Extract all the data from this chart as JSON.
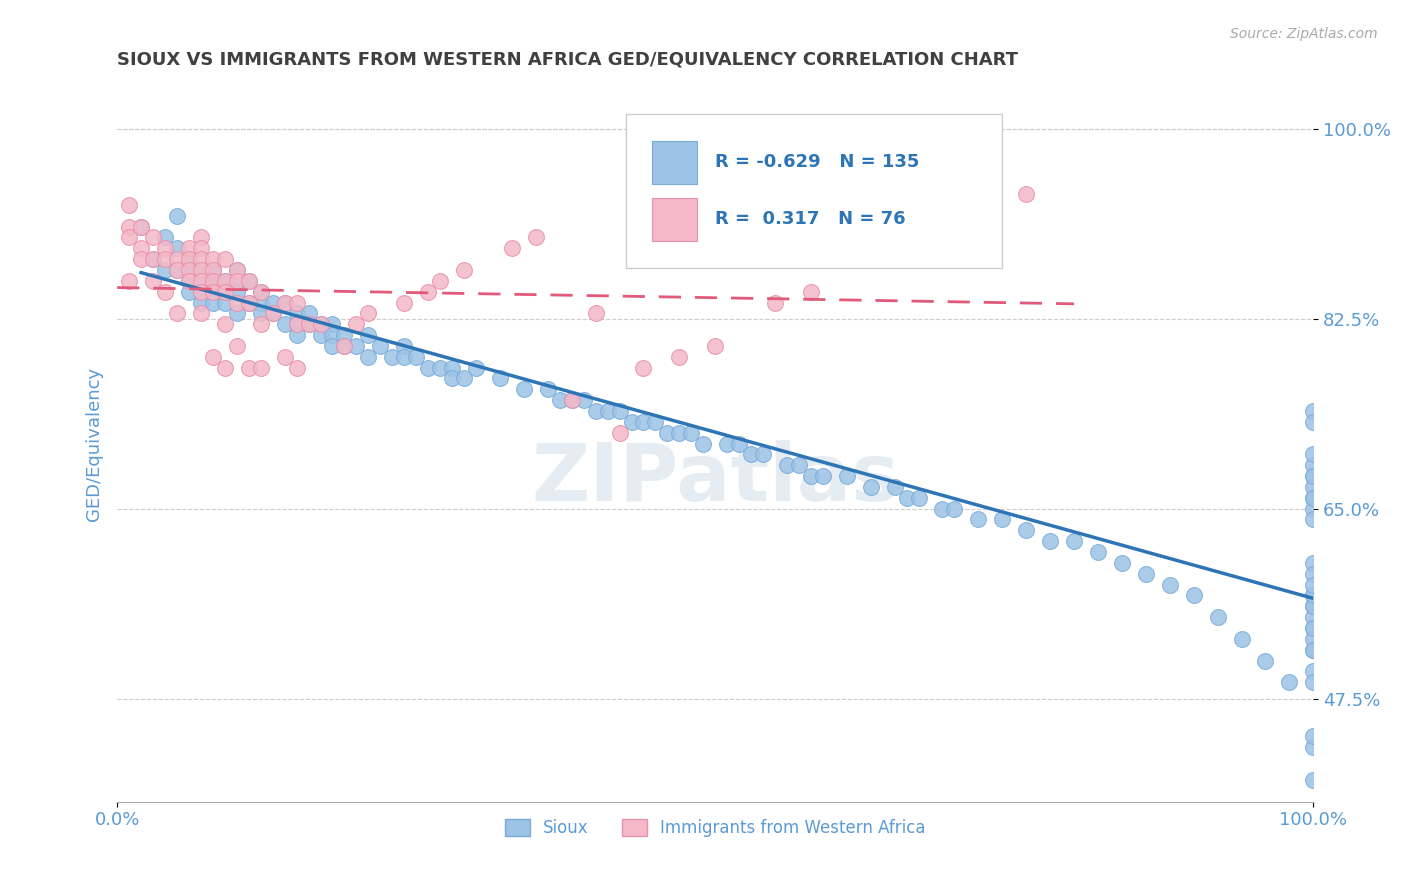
{
  "title": "SIOUX VS IMMIGRANTS FROM WESTERN AFRICA GED/EQUIVALENCY CORRELATION CHART",
  "source_text": "Source: ZipAtlas.com",
  "ylabel": "GED/Equivalency",
  "xlim": [
    0.0,
    1.0
  ],
  "ylim": [
    0.38,
    1.04
  ],
  "yticks": [
    0.475,
    0.65,
    0.825,
    1.0
  ],
  "ytick_labels": [
    "47.5%",
    "65.0%",
    "82.5%",
    "100.0%"
  ],
  "xticks": [
    0.0,
    1.0
  ],
  "xtick_labels": [
    "0.0%",
    "100.0%"
  ],
  "R_sioux": -0.629,
  "N_sioux": 135,
  "R_west_africa": 0.317,
  "N_west_africa": 76,
  "watermark": "ZIPatlas",
  "background_color": "#ffffff",
  "plot_bg_color": "#ffffff",
  "grid_color": "#cccccc",
  "title_color": "#404040",
  "axis_label_color": "#5b9bd5",
  "tick_label_color": "#5b9bd5",
  "sioux_color": "#9dc3e6",
  "sioux_edge_color": "#7aacda",
  "west_africa_color": "#f4b8c8",
  "west_africa_edge_color": "#e891aa",
  "sioux_trend_color": "#2e75b6",
  "west_africa_trend_color": "#e05a7a",
  "sioux_x": [
    0.02,
    0.03,
    0.04,
    0.04,
    0.05,
    0.05,
    0.05,
    0.06,
    0.06,
    0.06,
    0.06,
    0.07,
    0.07,
    0.07,
    0.07,
    0.08,
    0.08,
    0.08,
    0.08,
    0.09,
    0.09,
    0.09,
    0.1,
    0.1,
    0.1,
    0.1,
    0.11,
    0.11,
    0.12,
    0.12,
    0.12,
    0.13,
    0.13,
    0.14,
    0.14,
    0.15,
    0.15,
    0.15,
    0.16,
    0.16,
    0.17,
    0.17,
    0.18,
    0.18,
    0.18,
    0.19,
    0.19,
    0.2,
    0.21,
    0.21,
    0.22,
    0.23,
    0.24,
    0.24,
    0.25,
    0.26,
    0.27,
    0.28,
    0.28,
    0.29,
    0.3,
    0.32,
    0.34,
    0.36,
    0.37,
    0.38,
    0.39,
    0.4,
    0.41,
    0.42,
    0.43,
    0.44,
    0.45,
    0.46,
    0.47,
    0.48,
    0.49,
    0.51,
    0.52,
    0.53,
    0.54,
    0.56,
    0.57,
    0.58,
    0.59,
    0.61,
    0.63,
    0.65,
    0.66,
    0.67,
    0.69,
    0.7,
    0.72,
    0.74,
    0.76,
    0.78,
    0.8,
    0.82,
    0.84,
    0.86,
    0.88,
    0.9,
    0.92,
    0.94,
    0.96,
    0.98,
    1.0,
    1.0,
    1.0,
    1.0,
    1.0,
    1.0,
    1.0,
    1.0,
    1.0,
    1.0,
    1.0,
    1.0,
    1.0,
    1.0,
    1.0,
    1.0,
    1.0,
    1.0,
    1.0,
    1.0,
    1.0,
    1.0,
    1.0,
    1.0,
    1.0,
    1.0,
    1.0,
    1.0,
    1.0
  ],
  "sioux_y": [
    0.91,
    0.88,
    0.9,
    0.87,
    0.92,
    0.89,
    0.87,
    0.88,
    0.87,
    0.86,
    0.85,
    0.87,
    0.86,
    0.85,
    0.84,
    0.87,
    0.86,
    0.85,
    0.84,
    0.86,
    0.85,
    0.84,
    0.87,
    0.86,
    0.85,
    0.83,
    0.86,
    0.84,
    0.85,
    0.84,
    0.83,
    0.84,
    0.83,
    0.84,
    0.82,
    0.83,
    0.82,
    0.81,
    0.83,
    0.82,
    0.82,
    0.81,
    0.82,
    0.81,
    0.8,
    0.81,
    0.8,
    0.8,
    0.81,
    0.79,
    0.8,
    0.79,
    0.8,
    0.79,
    0.79,
    0.78,
    0.78,
    0.78,
    0.77,
    0.77,
    0.78,
    0.77,
    0.76,
    0.76,
    0.75,
    0.75,
    0.75,
    0.74,
    0.74,
    0.74,
    0.73,
    0.73,
    0.73,
    0.72,
    0.72,
    0.72,
    0.71,
    0.71,
    0.71,
    0.7,
    0.7,
    0.69,
    0.69,
    0.68,
    0.68,
    0.68,
    0.67,
    0.67,
    0.66,
    0.66,
    0.65,
    0.65,
    0.64,
    0.64,
    0.63,
    0.62,
    0.62,
    0.61,
    0.6,
    0.59,
    0.58,
    0.57,
    0.55,
    0.53,
    0.51,
    0.49,
    0.69,
    0.68,
    0.67,
    0.66,
    0.65,
    0.64,
    0.74,
    0.73,
    0.57,
    0.56,
    0.6,
    0.59,
    0.55,
    0.54,
    0.53,
    0.52,
    0.5,
    0.49,
    0.56,
    0.57,
    0.43,
    0.44,
    0.4,
    0.58,
    0.66,
    0.68,
    0.7,
    0.54,
    0.52
  ],
  "wa_x": [
    0.01,
    0.01,
    0.01,
    0.01,
    0.02,
    0.02,
    0.02,
    0.03,
    0.03,
    0.03,
    0.04,
    0.04,
    0.04,
    0.05,
    0.05,
    0.05,
    0.06,
    0.06,
    0.06,
    0.06,
    0.07,
    0.07,
    0.07,
    0.07,
    0.07,
    0.07,
    0.07,
    0.08,
    0.08,
    0.08,
    0.08,
    0.08,
    0.09,
    0.09,
    0.09,
    0.09,
    0.09,
    0.1,
    0.1,
    0.1,
    0.1,
    0.11,
    0.11,
    0.11,
    0.12,
    0.12,
    0.12,
    0.13,
    0.14,
    0.14,
    0.15,
    0.15,
    0.15,
    0.16,
    0.17,
    0.19,
    0.2,
    0.21,
    0.24,
    0.26,
    0.27,
    0.29,
    0.33,
    0.35,
    0.38,
    0.4,
    0.42,
    0.44,
    0.47,
    0.5,
    0.55,
    0.58,
    0.64,
    0.69,
    0.72,
    0.76
  ],
  "wa_y": [
    0.93,
    0.91,
    0.9,
    0.86,
    0.91,
    0.89,
    0.88,
    0.9,
    0.88,
    0.86,
    0.89,
    0.88,
    0.85,
    0.88,
    0.87,
    0.83,
    0.89,
    0.88,
    0.87,
    0.86,
    0.9,
    0.89,
    0.88,
    0.87,
    0.86,
    0.85,
    0.83,
    0.88,
    0.87,
    0.86,
    0.85,
    0.79,
    0.88,
    0.86,
    0.85,
    0.82,
    0.78,
    0.87,
    0.86,
    0.84,
    0.8,
    0.86,
    0.84,
    0.78,
    0.85,
    0.82,
    0.78,
    0.83,
    0.84,
    0.79,
    0.84,
    0.82,
    0.78,
    0.82,
    0.82,
    0.8,
    0.82,
    0.83,
    0.84,
    0.85,
    0.86,
    0.87,
    0.89,
    0.9,
    0.75,
    0.83,
    0.72,
    0.78,
    0.79,
    0.8,
    0.84,
    0.85,
    0.88,
    0.9,
    0.92,
    0.94
  ]
}
